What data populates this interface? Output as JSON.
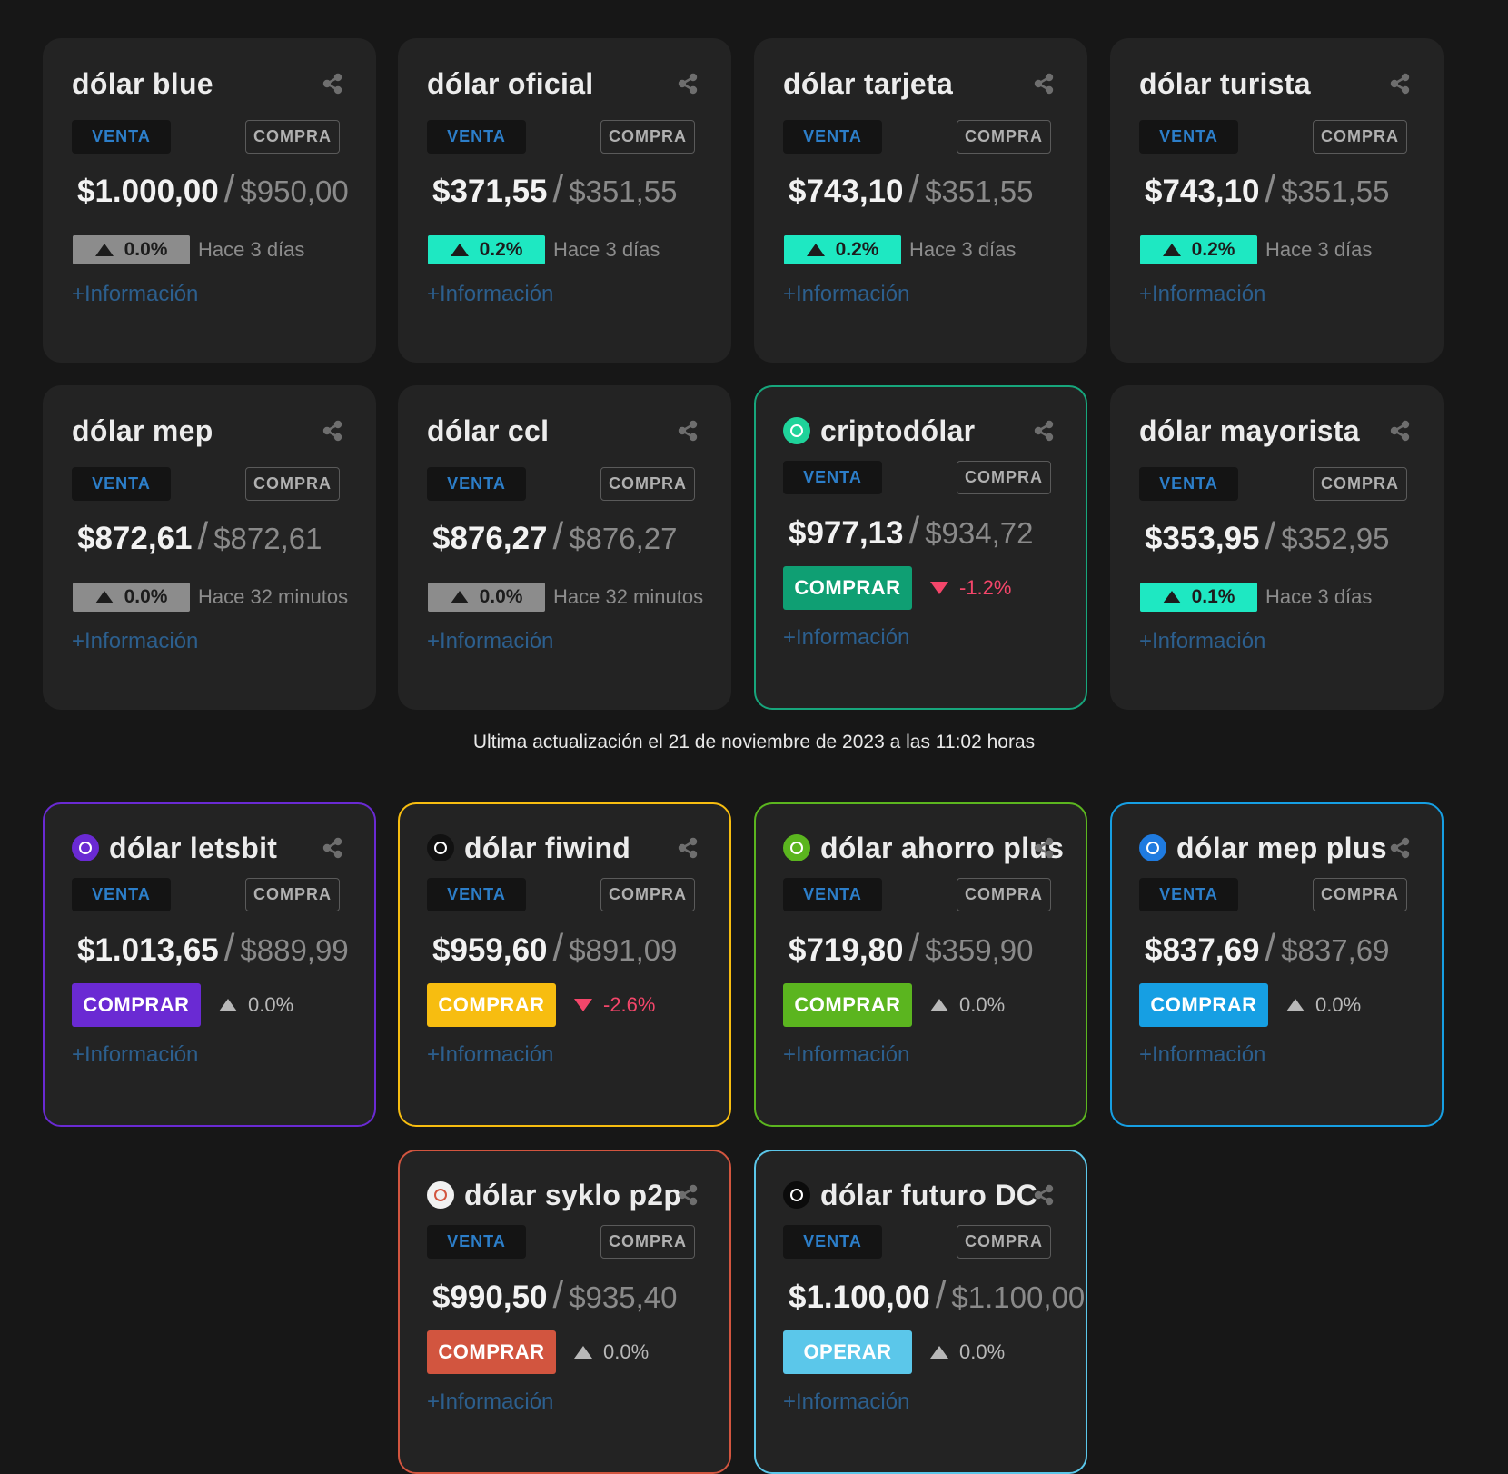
{
  "labels": {
    "sell": "VENTA",
    "buy": "COMPRA",
    "separator": "/",
    "more": "+Información"
  },
  "cards": [
    {
      "title": "dólar blue",
      "sell": "$1.000,00",
      "buy": "$950,00",
      "change": "0.0%",
      "updated": "Hace 3 días"
    },
    {
      "title": "dólar oficial",
      "sell": "$371,55",
      "buy": "$351,55",
      "change": "0.2%",
      "updated": "Hace 3 días"
    },
    {
      "title": "dólar tarjeta",
      "sell": "$743,10",
      "buy": "$351,55",
      "change": "0.2%",
      "updated": "Hace 3 días"
    },
    {
      "title": "dólar turista",
      "sell": "$743,10",
      "buy": "$351,55",
      "change": "0.2%",
      "updated": "Hace 3 días"
    },
    {
      "title": "dólar mep",
      "sell": "$872,61",
      "buy": "$872,61",
      "change": "0.0%",
      "updated": "Hace 32 minutos"
    },
    {
      "title": "dólar ccl",
      "sell": "$876,27",
      "buy": "$876,27",
      "change": "0.0%",
      "updated": "Hace 32 minutos"
    },
    {
      "title": "criptodólar",
      "sell": "$977,13",
      "buy": "$934,72",
      "change": "-1.2%",
      "button": "COMPRAR"
    },
    {
      "title": "dólar mayorista",
      "sell": "$353,95",
      "buy": "$352,95",
      "change": "0.1%",
      "updated": "Hace 3 días"
    },
    {
      "title": "dólar letsbit",
      "sell": "$1.013,65",
      "buy": "$889,99",
      "change": "0.0%",
      "button": "COMPRAR"
    },
    {
      "title": "dólar fiwind",
      "sell": "$959,60",
      "buy": "$891,09",
      "change": "-2.6%",
      "button": "COMPRAR"
    },
    {
      "title": "dólar ahorro plus",
      "sell": "$719,80",
      "buy": "$359,90",
      "change": "0.0%",
      "button": "COMPRAR"
    },
    {
      "title": "dólar mep plus",
      "sell": "$837,69",
      "buy": "$837,69",
      "change": "0.0%",
      "button": "COMPRAR"
    },
    {
      "title": "dólar syklo p2p",
      "sell": "$990,50",
      "buy": "$935,40",
      "change": "0.0%",
      "button": "COMPRAR"
    },
    {
      "title": "dólar futuro DC",
      "sell": "$1.100,00",
      "buy": "$1.100,00",
      "change": "0.0%",
      "button": "OPERAR"
    }
  ],
  "footer": "Ultima actualización el 21 de noviembre de 2023 a las 11:02 horas"
}
